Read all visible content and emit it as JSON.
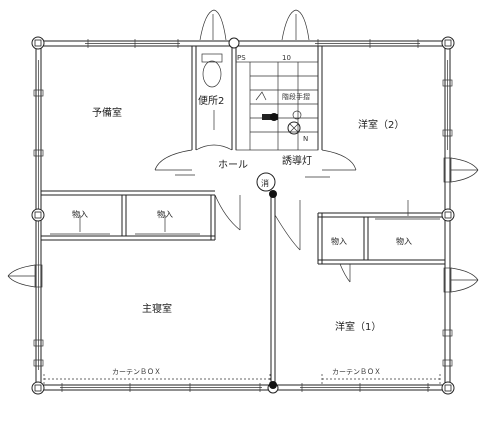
{
  "rooms": {
    "spare_room": "予備室",
    "toilet": "便所2",
    "stair_rail": "階段手摺",
    "stair_step_number": "10",
    "pipe_space": "PS",
    "hall": "ホール",
    "guide_light": "誘導灯",
    "extinguisher": "消",
    "western_room_2": "洋室（2）",
    "storage_1": "物入",
    "storage_2": "物入",
    "storage_3": "物入",
    "storage_4": "物入",
    "master_bedroom": "主寝室",
    "western_room_1": "洋室（1）",
    "curtain_box_left": "カーテンＢＯＸ",
    "curtain_box_right": "カーテンＢＯＸ",
    "sensor_label": "N"
  }
}
